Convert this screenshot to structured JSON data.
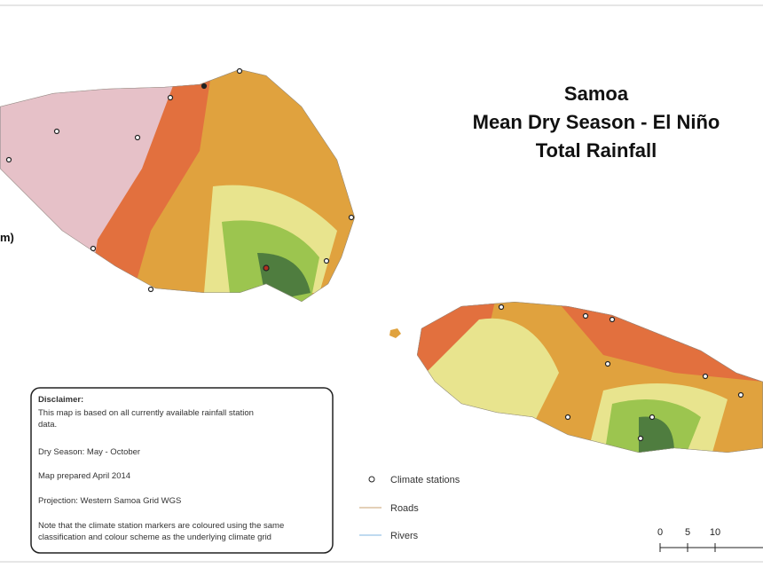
{
  "title": [
    "Samoa",
    "Mean Dry Season - El Niño",
    "Total Rainfall"
  ],
  "legend_fragment": "m)",
  "disclaimer": {
    "heading": "Disclaimer:",
    "lines": [
      "This map is based on all currently available rainfall station",
      "data.",
      "Dry Season: May - October",
      "Map prepared April 2014",
      "Projection: Western Samoa Grid WGS",
      "Note that the climate station markers are coloured using the same",
      "classification and colour scheme as the underlying climate grid"
    ]
  },
  "legend": [
    "Climate stations",
    "Roads",
    "Rivers"
  ],
  "scale": {
    "ticks": [
      0,
      5,
      10
    ]
  }
}
